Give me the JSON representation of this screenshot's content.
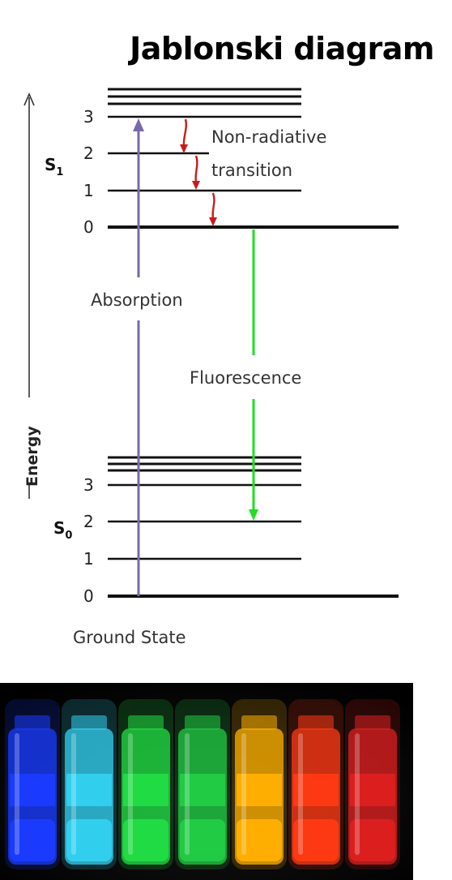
{
  "title": "Jablonski diagram",
  "energy_axis": {
    "label": "Energy"
  },
  "states": {
    "excited": {
      "name": "S",
      "subscript": "1",
      "levels": [
        "3",
        "2",
        "1",
        "0"
      ]
    },
    "ground": {
      "name": "S",
      "subscript": "0",
      "levels": [
        "3",
        "2",
        "1",
        "0"
      ],
      "caption": "Ground State"
    }
  },
  "transitions": {
    "absorption": "Absorption",
    "fluorescence": "Fluorescence",
    "non_radiative": [
      "Non-radiative",
      "transition"
    ]
  },
  "colors": {
    "absorption": "#7a6aa6",
    "fluorescence": "#22dd22",
    "non_radiative": "#cc1a1a",
    "levels": "#111111"
  },
  "photo": {
    "description_icon": "fluorescent-vials-photo",
    "vial_colors": [
      "#1a3cff",
      "#33d0f0",
      "#22dd44",
      "#22cc44",
      "#ffb000",
      "#ff3a14",
      "#dd2020"
    ]
  }
}
